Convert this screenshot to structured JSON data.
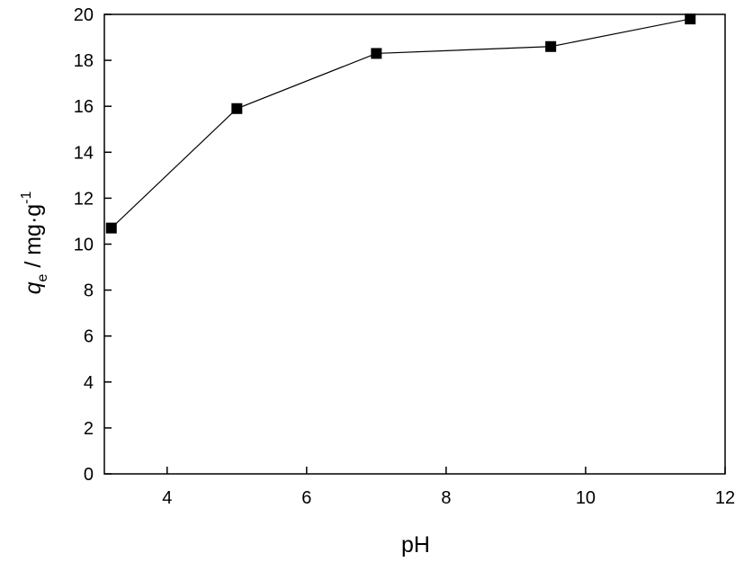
{
  "chart_data": {
    "type": "line",
    "title": "",
    "xlabel": "pH",
    "ylabel": {
      "symbol": "q",
      "subscript": "e",
      "unit": " / mg·g",
      "superscript": "-1"
    },
    "xlim": [
      3.1,
      12
    ],
    "ylim": [
      0,
      20
    ],
    "xticks": [
      4,
      6,
      8,
      10,
      12
    ],
    "yticks": [
      0,
      2,
      4,
      6,
      8,
      10,
      12,
      14,
      16,
      18,
      20
    ],
    "grid": false,
    "legend": "none",
    "marker": "square",
    "colors": {
      "line": "#000000",
      "marker": "#000000",
      "axis": "#000000"
    },
    "series": [
      {
        "x": [
          3.2,
          5.0,
          7.0,
          9.5,
          11.5
        ],
        "y": [
          10.7,
          15.9,
          18.3,
          18.6,
          19.8
        ]
      }
    ]
  }
}
